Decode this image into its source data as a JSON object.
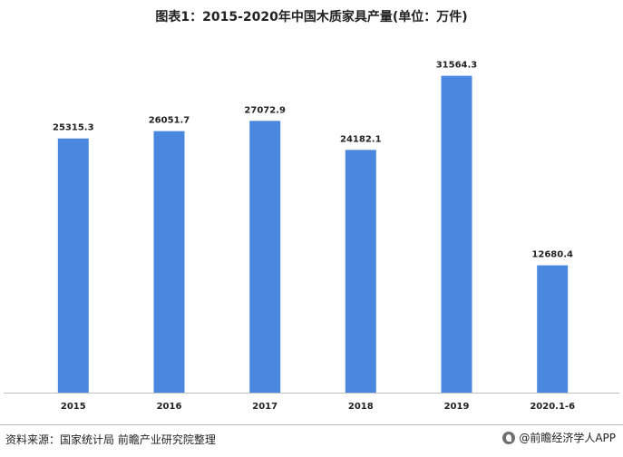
{
  "chart_data": {
    "type": "bar",
    "title": "图表1：2015-2020年中国木质家具产量(单位：万件)",
    "categories": [
      "2015",
      "2016",
      "2017",
      "2018",
      "2019",
      "2020.1-6"
    ],
    "values": [
      25315.3,
      26051.7,
      27072.9,
      24182.1,
      31564.3,
      12680.4
    ],
    "value_labels": [
      "25315.3",
      "26051.7",
      "27072.9",
      "24182.1",
      "31564.3",
      "12680.4"
    ],
    "ylim": [
      0,
      35500
    ],
    "xlabel": "",
    "ylabel": "",
    "grid": false,
    "legend": "none",
    "bar_color": "#4a88e0"
  },
  "footer": {
    "source": "资料来源：国家统计局 前瞻产业研究院整理",
    "brand": "@前瞻经济学人APP"
  },
  "colors": {
    "axis": "#bfbfbf",
    "text": "#222222"
  }
}
